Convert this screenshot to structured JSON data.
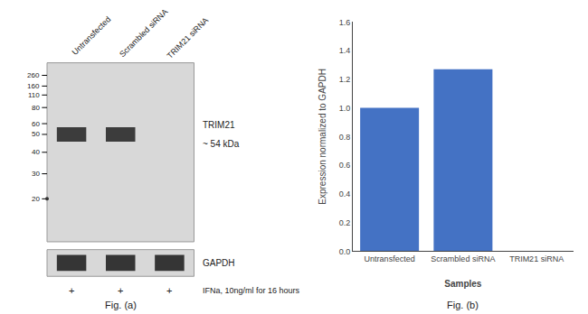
{
  "chart_data": [
    {
      "type": "blot",
      "categories": [
        "Untransfected",
        "Scrambled siRNA",
        "TRIM21 siRNA"
      ],
      "yticks": [
        260,
        160,
        110,
        80,
        60,
        50,
        40,
        30,
        20
      ],
      "color": "#d8d8d8",
      "annotations": [
        "TRIM21",
        "~ 54 kDa",
        "GAPDH",
        "+",
        "+",
        "+",
        "IFNa, 10ng/ml for 16 hours",
        "Fig. (a)"
      ]
    },
    {
      "type": "bar",
      "categories": [
        "Untransfected",
        "Scrambled siRNA",
        "TRIM21 siRNA"
      ],
      "values": [
        1.0,
        1.27,
        0.0
      ],
      "color": "#4472C4",
      "xlabel": "Samples",
      "ylabel": "Expression normalized to GAPDH",
      "ylim": [
        0,
        1.6
      ],
      "yticks": [
        {
          "value": 0,
          "label": "0.0"
        },
        0.2,
        0.4,
        0.6,
        0.8,
        {
          "value": 1.0,
          "label": "1.0"
        },
        1.2,
        1.4,
        1.6
      ],
      "grid": false,
      "annotations": [
        "Fig. (b)"
      ]
    }
  ]
}
